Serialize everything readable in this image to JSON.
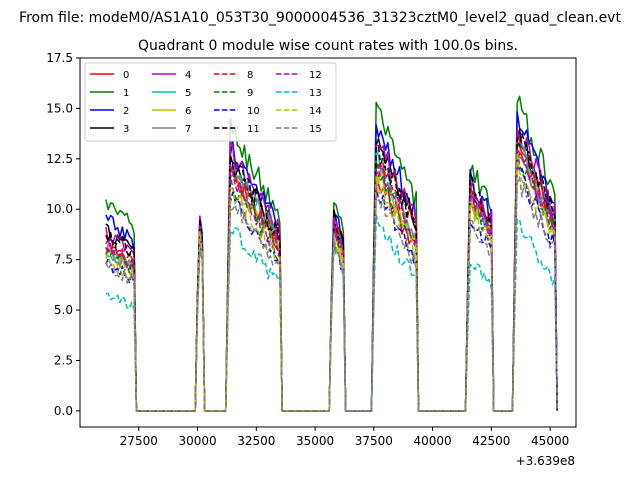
{
  "figure": {
    "suptitle": "From file: modeM0/AS1A10_053T30_9000004536_31323cztM0_level2_quad_clean.evt",
    "title": "Quadrant 0 module wise count rates with 100.0s bins.",
    "x_offset_label": "+3.639e8"
  },
  "chart_data": {
    "type": "line",
    "title": "Quadrant 0 module wise count rates with 100.0s bins.",
    "xlabel": "",
    "ylabel": "",
    "x_offset": 363900000,
    "xlim": [
      25000,
      46100
    ],
    "ylim": [
      -0.8,
      17.5
    ],
    "xticks": [
      27500,
      30000,
      32500,
      35000,
      37500,
      40000,
      42500,
      45000
    ],
    "yticks": [
      0.0,
      2.5,
      5.0,
      7.5,
      10.0,
      12.5,
      15.0,
      17.5
    ],
    "xtick_labels": [
      "27500",
      "30000",
      "32500",
      "35000",
      "37500",
      "40000",
      "42500",
      "45000"
    ],
    "ytick_labels": [
      "0.0",
      "2.5",
      "5.0",
      "7.5",
      "10.0",
      "12.5",
      "15.0",
      "17.5"
    ],
    "legend_position": "top-left",
    "segments": [
      {
        "start": 26100,
        "end": 27300,
        "zero_until": 29900
      },
      {
        "start": 30000,
        "end": 30200,
        "zero_until": 31200
      },
      {
        "start": 31300,
        "end": 33500,
        "zero_until": 35600
      },
      {
        "start": 35700,
        "end": 36200,
        "zero_until": 37400
      },
      {
        "start": 37500,
        "end": 39300,
        "zero_until": 41400
      },
      {
        "start": 41500,
        "end": 42500,
        "zero_until": 43400
      },
      {
        "start": 43500,
        "end": 45200,
        "zero_until": null
      }
    ],
    "series": [
      {
        "name": "0",
        "color": "#ff0000",
        "dash": "solid",
        "levels": [
          8.2,
          10.0,
          12.0,
          9.5,
          11.8,
          10.8,
          13.2
        ]
      },
      {
        "name": "1",
        "color": "#008000",
        "dash": "solid",
        "levels": [
          10.3,
          10.6,
          14.2,
          10.8,
          15.1,
          12.4,
          15.6
        ]
      },
      {
        "name": "2",
        "color": "#0000ff",
        "dash": "solid",
        "levels": [
          9.5,
          10.5,
          13.2,
          10.3,
          14.3,
          11.8,
          14.8
        ]
      },
      {
        "name": "3",
        "color": "#000000",
        "dash": "solid",
        "levels": [
          9.0,
          10.2,
          12.7,
          10.1,
          13.6,
          11.4,
          14.2
        ]
      },
      {
        "name": "4",
        "color": "#bf00bf",
        "dash": "solid",
        "levels": [
          8.8,
          10.3,
          13.0,
          10.0,
          13.9,
          11.5,
          14.5
        ]
      },
      {
        "name": "5",
        "color": "#00bfbf",
        "dash": "solid",
        "levels": [
          7.8,
          9.8,
          12.5,
          9.6,
          12.8,
          10.9,
          13.5
        ]
      },
      {
        "name": "6",
        "color": "#bfbf00",
        "dash": "solid",
        "levels": [
          7.9,
          9.6,
          11.8,
          9.2,
          12.0,
          10.6,
          13.0
        ]
      },
      {
        "name": "7",
        "color": "#808080",
        "dash": "solid",
        "levels": [
          8.0,
          9.7,
          12.2,
          9.4,
          12.4,
          10.7,
          13.2
        ]
      },
      {
        "name": "8",
        "color": "#ff0000",
        "dash": "dashed",
        "levels": [
          8.3,
          9.9,
          12.0,
          9.7,
          12.9,
          11.0,
          13.6
        ]
      },
      {
        "name": "9",
        "color": "#008000",
        "dash": "dashed",
        "levels": [
          8.0,
          9.5,
          11.5,
          9.3,
          12.2,
          10.6,
          13.0
        ]
      },
      {
        "name": "10",
        "color": "#0000ff",
        "dash": "dashed",
        "levels": [
          7.4,
          9.1,
          10.8,
          8.6,
          11.2,
          9.8,
          12.2
        ]
      },
      {
        "name": "11",
        "color": "#000000",
        "dash": "dashed",
        "levels": [
          8.8,
          10.3,
          12.7,
          10.0,
          13.4,
          11.6,
          14.2
        ]
      },
      {
        "name": "12",
        "color": "#bf00bf",
        "dash": "dashed",
        "levels": [
          8.1,
          9.8,
          11.8,
          9.5,
          12.5,
          10.9,
          13.3
        ]
      },
      {
        "name": "13",
        "color": "#00bfbf",
        "dash": "dashed",
        "levels": [
          5.8,
          8.8,
          9.2,
          8.5,
          9.5,
          7.6,
          9.5
        ]
      },
      {
        "name": "14",
        "color": "#bfbf00",
        "dash": "dashed",
        "levels": [
          7.5,
          9.3,
          11.0,
          9.0,
          11.6,
          10.2,
          12.5
        ]
      },
      {
        "name": "15",
        "color": "#808080",
        "dash": "dashed",
        "levels": [
          7.3,
          9.0,
          10.5,
          8.7,
          10.9,
          9.6,
          11.8
        ]
      }
    ]
  }
}
